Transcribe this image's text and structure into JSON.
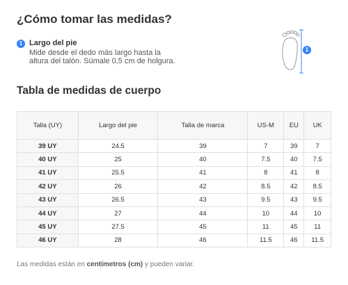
{
  "header": {
    "title": "¿Cómo tomar las medidas?"
  },
  "step": {
    "badge": "1",
    "title": "Largo del pie",
    "lines": [
      "Mide desde el dedo más largo hasta la",
      "altura del talón. Súmale 0,5 cm de holgura."
    ],
    "icon_badge": "1"
  },
  "table_title": "Tabla de medidas de cuerpo",
  "table": {
    "columns": [
      "Talla (UY)",
      "Largo del pie",
      "Talla de marca",
      "US-M",
      "EU",
      "UK"
    ],
    "rows": [
      [
        "39 UY",
        "24.5",
        "39",
        "7",
        "39",
        "7"
      ],
      [
        "40 UY",
        "25",
        "40",
        "7.5",
        "40",
        "7.5"
      ],
      [
        "41 UY",
        "25.5",
        "41",
        "8",
        "41",
        "8"
      ],
      [
        "42 UY",
        "26",
        "42",
        "8.5",
        "42",
        "8.5"
      ],
      [
        "43 UY",
        "26.5",
        "43",
        "9.5",
        "43",
        "9.5"
      ],
      [
        "44 UY",
        "27",
        "44",
        "10",
        "44",
        "10"
      ],
      [
        "45 UY",
        "27.5",
        "45",
        "11",
        "45",
        "11"
      ],
      [
        "46 UY",
        "28",
        "46",
        "11.5",
        "46",
        "11.5"
      ]
    ]
  },
  "footer": {
    "before": "Las medidas están en ",
    "bold": "centímetros (cm)",
    "after": " y pueden variar."
  }
}
